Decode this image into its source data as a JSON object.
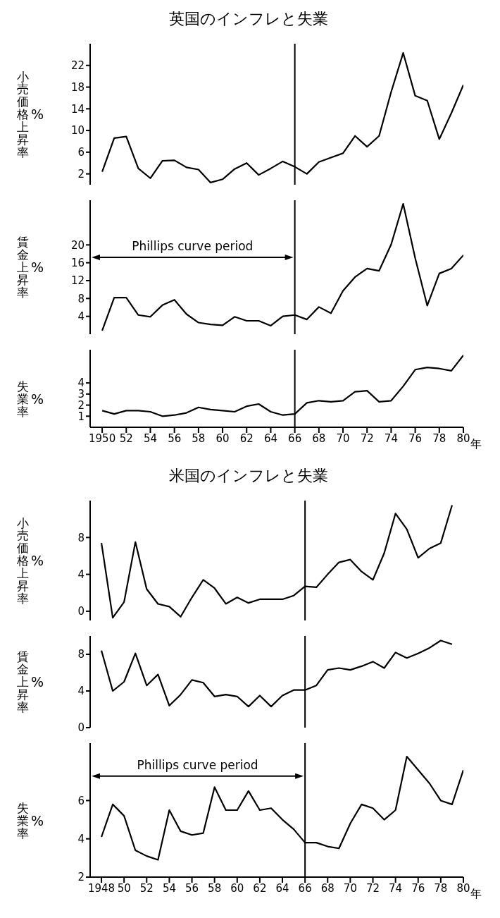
{
  "chart_data": [
    {
      "type": "line",
      "title": "英国のインフレと失業",
      "ylabel": "小売価格上昇率 %",
      "tick_labels": "y",
      "xlim": [
        1949,
        1980
      ],
      "ylim": [
        0,
        26
      ],
      "yticks": [
        2,
        6,
        10,
        14,
        18,
        22
      ],
      "ref_lines": [
        {
          "axis": "x",
          "value": 1966
        }
      ],
      "x": [
        1950,
        1951,
        1952,
        1953,
        1954,
        1955,
        1956,
        1957,
        1958,
        1959,
        1960,
        1961,
        1962,
        1963,
        1964,
        1965,
        1966,
        1967,
        1968,
        1969,
        1970,
        1971,
        1972,
        1973,
        1974,
        1975,
        1976,
        1977,
        1978,
        1979,
        1980
      ],
      "series": [
        {
          "color": "#000000",
          "values": [
            2.4,
            8.6,
            8.9,
            3.0,
            1.2,
            4.4,
            4.5,
            3.2,
            2.8,
            0.4,
            1.0,
            2.9,
            4.0,
            1.8,
            3.0,
            4.3,
            3.3,
            2.0,
            4.2,
            5.0,
            5.8,
            9.0,
            7.0,
            9.0,
            17.1,
            24.3,
            16.4,
            15.5,
            8.4,
            13.2,
            18.4
          ]
        }
      ]
    },
    {
      "type": "line",
      "ylabel": "賃金上昇率 %",
      "tick_labels": "y",
      "xlim": [
        1949,
        1980
      ],
      "ylim": [
        0,
        30
      ],
      "yticks": [
        4,
        8,
        12,
        16,
        20
      ],
      "ref_lines": [
        {
          "axis": "x",
          "value": 1966
        }
      ],
      "annotations": [
        "Phillips curve period"
      ],
      "x": [
        1950,
        1951,
        1952,
        1953,
        1954,
        1955,
        1956,
        1957,
        1958,
        1959,
        1960,
        1961,
        1962,
        1963,
        1964,
        1965,
        1966,
        1967,
        1968,
        1969,
        1970,
        1971,
        1972,
        1973,
        1974,
        1975,
        1976,
        1977,
        1978,
        1979,
        1980
      ],
      "series": [
        {
          "color": "#000000",
          "values": [
            0.8,
            8.2,
            8.2,
            4.3,
            3.9,
            6.5,
            7.7,
            4.5,
            2.6,
            2.2,
            2.0,
            3.9,
            3.0,
            3.0,
            1.9,
            4.0,
            4.3,
            3.3,
            6.1,
            4.7,
            9.7,
            12.8,
            14.7,
            14.2,
            20.1,
            29.2,
            17.0,
            6.4,
            13.6,
            14.7,
            17.7
          ]
        }
      ]
    },
    {
      "type": "line",
      "ylabel": "失業率 %",
      "xlabel": "年",
      "xlim": [
        1949,
        1980
      ],
      "ylim": [
        0,
        7
      ],
      "yticks": [
        1,
        2,
        3,
        4
      ],
      "ref_lines": [
        {
          "axis": "x",
          "value": 1966
        }
      ],
      "xticks": [
        {
          "value": 1950,
          "label": "1950"
        },
        {
          "value": 1952,
          "label": "52"
        },
        {
          "value": 1954,
          "label": "54"
        },
        {
          "value": 1956,
          "label": "56"
        },
        {
          "value": 1958,
          "label": "58"
        },
        {
          "value": 1960,
          "label": "60"
        },
        {
          "value": 1962,
          "label": "62"
        },
        {
          "value": 1964,
          "label": "64"
        },
        {
          "value": 1966,
          "label": "66"
        },
        {
          "value": 1968,
          "label": "68"
        },
        {
          "value": 1970,
          "label": "70"
        },
        {
          "value": 1972,
          "label": "72"
        },
        {
          "value": 1974,
          "label": "74"
        },
        {
          "value": 1976,
          "label": "76"
        },
        {
          "value": 1978,
          "label": "78"
        },
        {
          "value": 1980,
          "label": "80"
        }
      ],
      "x": [
        1950,
        1951,
        1952,
        1953,
        1954,
        1955,
        1956,
        1957,
        1958,
        1959,
        1960,
        1961,
        1962,
        1963,
        1964,
        1965,
        1966,
        1967,
        1968,
        1969,
        1970,
        1971,
        1972,
        1973,
        1974,
        1975,
        1976,
        1977,
        1978,
        1979,
        1980
      ],
      "series": [
        {
          "color": "#000000",
          "values": [
            1.5,
            1.2,
            1.5,
            1.5,
            1.4,
            1.0,
            1.1,
            1.3,
            1.8,
            1.6,
            1.5,
            1.4,
            1.9,
            2.1,
            1.4,
            1.1,
            1.2,
            2.2,
            2.4,
            2.3,
            2.4,
            3.2,
            3.3,
            2.3,
            2.4,
            3.7,
            5.2,
            5.4,
            5.3,
            5.1,
            6.5
          ]
        }
      ]
    },
    {
      "type": "line",
      "title": "米国のインフレと失業",
      "ylabel": "小売価格上昇率 %",
      "tick_labels": "y",
      "xlim": [
        1947,
        1980
      ],
      "ylim": [
        -1,
        12
      ],
      "yticks": [
        0,
        4,
        8
      ],
      "ref_lines": [
        {
          "axis": "x",
          "value": 1966
        }
      ],
      "x": [
        1948,
        1949,
        1950,
        1951,
        1952,
        1953,
        1954,
        1955,
        1956,
        1957,
        1958,
        1959,
        1960,
        1961,
        1962,
        1963,
        1964,
        1965,
        1966,
        1967,
        1968,
        1969,
        1970,
        1971,
        1972,
        1973,
        1974,
        1975,
        1976,
        1977,
        1978,
        1979
      ],
      "series": [
        {
          "color": "#000000",
          "values": [
            7.4,
            -0.7,
            1.0,
            7.5,
            2.4,
            0.8,
            0.5,
            -0.6,
            1.5,
            3.4,
            2.5,
            0.8,
            1.5,
            0.9,
            1.3,
            1.3,
            1.3,
            1.7,
            2.7,
            2.6,
            4.0,
            5.3,
            5.6,
            4.3,
            3.4,
            6.3,
            10.6,
            8.9,
            5.8,
            6.8,
            7.4,
            11.5
          ]
        }
      ]
    },
    {
      "type": "line",
      "ylabel": "賃金上昇率 %",
      "tick_labels": "y",
      "xlim": [
        1947,
        1980
      ],
      "ylim": [
        0,
        10
      ],
      "yticks": [
        0,
        4,
        8
      ],
      "ref_lines": [
        {
          "axis": "x",
          "value": 1966
        }
      ],
      "x": [
        1948,
        1949,
        1950,
        1951,
        1952,
        1953,
        1954,
        1955,
        1956,
        1957,
        1958,
        1959,
        1960,
        1961,
        1962,
        1963,
        1964,
        1965,
        1966,
        1967,
        1968,
        1969,
        1970,
        1971,
        1972,
        1973,
        1974,
        1975,
        1976,
        1977,
        1978,
        1979
      ],
      "series": [
        {
          "color": "#000000",
          "values": [
            8.4,
            4.0,
            5.0,
            8.1,
            4.6,
            5.8,
            2.4,
            3.6,
            5.2,
            4.9,
            3.4,
            3.6,
            3.4,
            2.3,
            3.5,
            2.3,
            3.5,
            4.1,
            4.1,
            4.6,
            6.3,
            6.5,
            6.3,
            6.7,
            7.2,
            6.5,
            8.2,
            7.6,
            8.1,
            8.7,
            9.5,
            9.1
          ]
        }
      ]
    },
    {
      "type": "line",
      "ylabel": "失業率 %",
      "xlabel": "年",
      "xlim": [
        1947,
        1980
      ],
      "ylim": [
        2,
        9
      ],
      "yticks": [
        2,
        4,
        6
      ],
      "ref_lines": [
        {
          "axis": "x",
          "value": 1966
        }
      ],
      "annotations": [
        "Phillips curve period"
      ],
      "xticks": [
        {
          "value": 1948,
          "label": "1948"
        },
        {
          "value": 1950,
          "label": "50"
        },
        {
          "value": 1952,
          "label": "52"
        },
        {
          "value": 1954,
          "label": "54"
        },
        {
          "value": 1956,
          "label": "56"
        },
        {
          "value": 1958,
          "label": "58"
        },
        {
          "value": 1960,
          "label": "60"
        },
        {
          "value": 1962,
          "label": "62"
        },
        {
          "value": 1964,
          "label": "64"
        },
        {
          "value": 1966,
          "label": "66"
        },
        {
          "value": 1968,
          "label": "68"
        },
        {
          "value": 1970,
          "label": "70"
        },
        {
          "value": 1972,
          "label": "72"
        },
        {
          "value": 1974,
          "label": "74"
        },
        {
          "value": 1976,
          "label": "76"
        },
        {
          "value": 1978,
          "label": "78"
        },
        {
          "value": 1980,
          "label": "80"
        }
      ],
      "x": [
        1948,
        1949,
        1950,
        1951,
        1952,
        1953,
        1954,
        1955,
        1956,
        1957,
        1958,
        1959,
        1960,
        1961,
        1962,
        1963,
        1964,
        1965,
        1966,
        1967,
        1968,
        1969,
        1970,
        1971,
        1972,
        1973,
        1974,
        1975,
        1976,
        1977,
        1978,
        1979,
        1980
      ],
      "series": [
        {
          "color": "#000000",
          "values": [
            4.1,
            5.8,
            5.2,
            3.4,
            3.1,
            2.9,
            5.5,
            4.4,
            4.2,
            4.3,
            6.7,
            5.5,
            5.5,
            6.5,
            5.5,
            5.6,
            5.0,
            4.5,
            3.8,
            3.8,
            3.6,
            3.5,
            4.8,
            5.8,
            5.6,
            5.0,
            5.5,
            8.3,
            7.6,
            6.9,
            6.0,
            5.8,
            7.6
          ]
        }
      ]
    }
  ]
}
